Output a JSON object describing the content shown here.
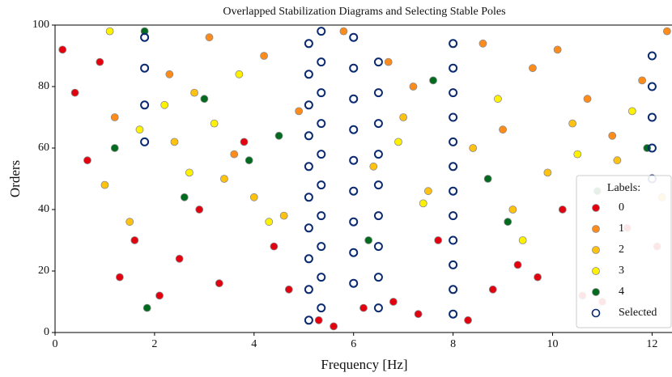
{
  "chart_data": {
    "type": "scatter",
    "title": "Overlapped Stabilization Diagrams and Selecting Stable Poles",
    "x_label": "Frequency [Hz]",
    "y_label": "Orders",
    "xlim": [
      0,
      12.4
    ],
    "ylim": [
      0,
      100
    ],
    "xticks": [
      0,
      2,
      4,
      6,
      8,
      10,
      12
    ],
    "yticks": [
      0,
      20,
      40,
      60,
      80,
      100
    ],
    "grid": false,
    "legend_title": "Labels:",
    "legend_position": "lower right",
    "series": [
      {
        "name": "0",
        "color": "#e3000f",
        "marker": "filled",
        "x": [
          0.15,
          0.4,
          0.65,
          0.9,
          1.3,
          1.6,
          2.1,
          2.5,
          2.9,
          3.3,
          3.8,
          4.4,
          4.7,
          5.3,
          5.6,
          6.2,
          6.8,
          7.3,
          7.7,
          8.3,
          8.8,
          9.3,
          9.7,
          10.2,
          10.6,
          11.0,
          11.5,
          12.1
        ],
        "values": [
          92,
          78,
          56,
          88,
          18,
          30,
          12,
          24,
          40,
          16,
          62,
          28,
          14,
          4,
          2,
          8,
          10,
          6,
          30,
          4,
          14,
          22,
          18,
          40,
          12,
          10,
          34,
          28
        ]
      },
      {
        "name": "1",
        "color": "#ff8c1a",
        "marker": "filled",
        "x": [
          1.2,
          2.3,
          3.1,
          3.6,
          4.2,
          4.9,
          5.8,
          6.7,
          7.2,
          8.6,
          9.0,
          9.6,
          10.1,
          10.7,
          11.2,
          11.8,
          12.3
        ],
        "values": [
          70,
          84,
          96,
          58,
          90,
          72,
          98,
          88,
          80,
          94,
          66,
          86,
          92,
          76,
          64,
          82,
          98
        ]
      },
      {
        "name": "2",
        "color": "#ffc20e",
        "marker": "filled",
        "x": [
          1.0,
          1.5,
          2.4,
          2.8,
          3.4,
          4.0,
          4.6,
          6.4,
          7.0,
          7.5,
          8.4,
          9.2,
          9.9,
          10.4,
          11.3,
          12.2
        ],
        "values": [
          48,
          36,
          62,
          78,
          50,
          44,
          38,
          54,
          70,
          46,
          60,
          40,
          52,
          68,
          56,
          44
        ]
      },
      {
        "name": "3",
        "color": "#fff200",
        "marker": "filled",
        "x": [
          1.1,
          1.7,
          2.2,
          2.7,
          3.2,
          3.7,
          4.3,
          6.9,
          7.4,
          8.9,
          9.4,
          10.5,
          11.6
        ],
        "values": [
          98,
          66,
          74,
          52,
          68,
          84,
          36,
          62,
          42,
          76,
          30,
          58,
          72
        ]
      },
      {
        "name": "4",
        "color": "#006b1e",
        "marker": "filled",
        "x": [
          1.2,
          1.8,
          1.85,
          2.6,
          3.0,
          3.9,
          4.5,
          6.3,
          7.6,
          8.7,
          9.1,
          10.9,
          11.9
        ],
        "values": [
          60,
          98,
          8,
          44,
          76,
          56,
          64,
          30,
          82,
          50,
          36,
          46,
          60
        ]
      },
      {
        "name": "Selected",
        "color": "#0b2a6f",
        "marker": "hollow",
        "x": [
          1.8,
          1.8,
          1.8,
          1.8,
          5.1,
          5.1,
          5.1,
          5.1,
          5.1,
          5.1,
          5.1,
          5.1,
          5.1,
          5.1,
          5.35,
          5.35,
          5.35,
          5.35,
          5.35,
          5.35,
          5.35,
          5.35,
          5.35,
          5.35,
          6.0,
          6.0,
          6.0,
          6.0,
          6.0,
          6.0,
          6.0,
          6.0,
          6.0,
          6.5,
          6.5,
          6.5,
          6.5,
          6.5,
          6.5,
          6.5,
          6.5,
          6.5,
          8.0,
          8.0,
          8.0,
          8.0,
          8.0,
          8.0,
          8.0,
          8.0,
          8.0,
          8.0,
          8.0,
          8.0,
          12.0,
          12.0,
          12.0,
          12.0,
          12.0
        ],
        "values": [
          62,
          74,
          86,
          96,
          4,
          14,
          24,
          34,
          44,
          54,
          64,
          74,
          84,
          94,
          8,
          18,
          28,
          38,
          48,
          58,
          68,
          78,
          88,
          98,
          16,
          26,
          36,
          46,
          56,
          66,
          76,
          86,
          96,
          8,
          18,
          28,
          38,
          48,
          58,
          68,
          78,
          88,
          6,
          14,
          22,
          30,
          38,
          46,
          54,
          62,
          70,
          78,
          86,
          94,
          50,
          60,
          70,
          80,
          90
        ]
      }
    ]
  }
}
